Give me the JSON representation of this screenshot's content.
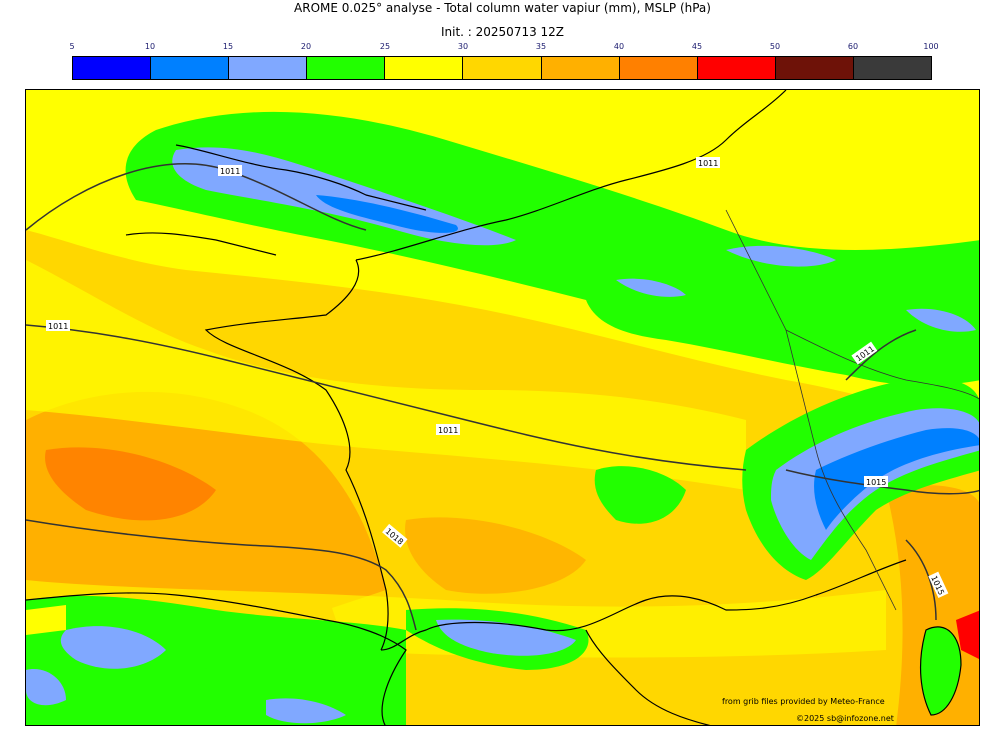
{
  "header": {
    "title": "AROME 0.025° analyse - Total column water vapiur (mm), MSLP (hPa)",
    "init": "Init. : 20250713 12Z"
  },
  "colorbar": {
    "ticks": [
      "5",
      "10",
      "15",
      "20",
      "25",
      "30",
      "35",
      "40",
      "45",
      "50",
      "60",
      "100"
    ],
    "colors": [
      "#0000ff",
      "#0080ff",
      "#80a8ff",
      "#22ff00",
      "#ffff00",
      "#ffd700",
      "#ffb000",
      "#ff8000",
      "#ff0000",
      "#6e1208",
      "#3a3a3a"
    ]
  },
  "isobars": [
    "1011",
    "1011",
    "1011",
    "1011",
    "1011",
    "1015",
    "1018",
    "1015"
  ],
  "credits": {
    "source": "from grib files provided by Meteo-France",
    "copyright": "©2025 sb@infozone.net"
  }
}
